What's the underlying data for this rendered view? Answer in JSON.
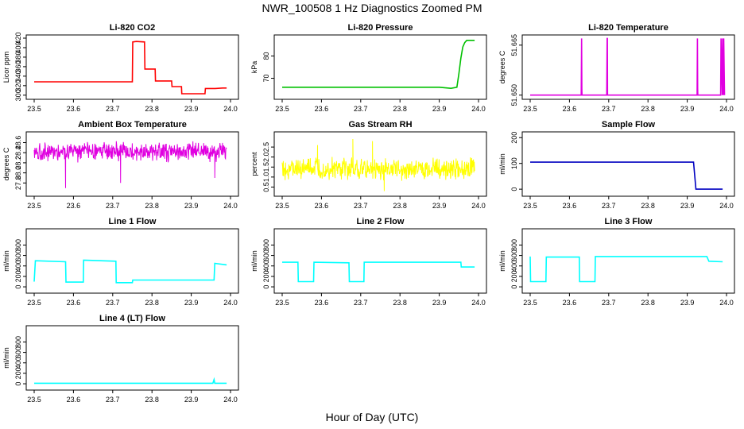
{
  "title": "NWR_100508  1 Hz Diagnostics Zoomed PM",
  "xlabel": "Hour of Day (UTC)",
  "chart_data": [
    {
      "type": "line",
      "title": "Li-820 CO2",
      "ylabel": "Licor ppm",
      "color": "#ff0000",
      "xlim": [
        23.5,
        24.0
      ],
      "ylim": [
        298,
        420
      ],
      "xticks": [
        "23.5",
        "23.6",
        "23.7",
        "23.8",
        "23.9",
        "24.0"
      ],
      "yticks": [
        "300",
        "320",
        "340",
        "360",
        "380",
        "400",
        "420"
      ],
      "x": [
        23.5,
        23.75,
        23.751,
        23.76,
        23.781,
        23.782,
        23.8,
        23.808,
        23.809,
        23.83,
        23.85,
        23.851,
        23.875,
        23.876,
        23.9,
        23.935,
        23.936,
        23.96,
        23.961,
        23.98,
        23.99
      ],
      "y": [
        328,
        328,
        412,
        413,
        412,
        355,
        355,
        355,
        330,
        330,
        330,
        318,
        318,
        303,
        303,
        303,
        314,
        314,
        314,
        315,
        315
      ]
    },
    {
      "type": "line",
      "title": "Li-820 Pressure",
      "ylabel": "kPa",
      "color": "#00c000",
      "xlim": [
        23.5,
        24.0
      ],
      "ylim": [
        62,
        88
      ],
      "xticks": [
        "23.5",
        "23.6",
        "23.7",
        "23.8",
        "23.9",
        "24.0"
      ],
      "yticks": [
        "70",
        "80"
      ],
      "x": [
        23.5,
        23.7,
        23.9,
        23.93,
        23.945,
        23.95,
        23.955,
        23.96,
        23.965,
        23.97,
        23.99
      ],
      "y": [
        66,
        66,
        66,
        65.5,
        66,
        72,
        79,
        84,
        86,
        87,
        87
      ]
    },
    {
      "type": "line",
      "title": "Li-820 Temperature",
      "ylabel": "degrees C",
      "color": "#e000e0",
      "xlim": [
        23.5,
        24.0
      ],
      "ylim": [
        51.6497,
        51.6671
      ],
      "xticks": [
        "23.5",
        "23.6",
        "23.7",
        "23.8",
        "23.9",
        "24.0"
      ],
      "yticks": [
        "51.650",
        "51.665"
      ],
      "x": [
        23.5,
        23.63,
        23.631,
        23.6315,
        23.632,
        23.695,
        23.696,
        23.6965,
        23.697,
        23.925,
        23.926,
        23.9265,
        23.927,
        23.985,
        23.986,
        23.988,
        23.989,
        23.99,
        23.991,
        23.992,
        23.993,
        23.995
      ],
      "y": [
        51.65,
        51.65,
        51.667,
        51.652,
        51.65,
        51.65,
        51.667,
        51.667,
        51.65,
        51.65,
        51.667,
        51.652,
        51.65,
        51.65,
        51.667,
        51.656,
        51.65,
        51.667,
        51.654,
        51.65,
        51.667,
        51.65
      ]
    },
    {
      "type": "line",
      "title": "Ambient Box Temperature",
      "ylabel": "degrees C",
      "color": "#e000e0",
      "xlim": [
        23.5,
        24.0
      ],
      "ylim": [
        27.6,
        28.75
      ],
      "xticks": [
        "23.5",
        "23.6",
        "23.7",
        "23.8",
        "23.9",
        "24.0"
      ],
      "yticks": [
        "27.8",
        "28.0",
        "28.2",
        "28.4",
        "28.6"
      ],
      "noise": {
        "center": 28.42,
        "amplitude": 0.22,
        "spikes": [
          [
            23.58,
            27.7
          ],
          [
            23.72,
            27.8
          ],
          [
            23.96,
            27.9
          ]
        ]
      }
    },
    {
      "type": "line",
      "title": "Gas Stream RH",
      "ylabel": "percent",
      "color": "#ffff00",
      "xlim": [
        23.5,
        24.0
      ],
      "ylim": [
        0.2,
        3.1
      ],
      "xticks": [
        "23.5",
        "23.6",
        "23.7",
        "23.8",
        "23.9",
        "24.0"
      ],
      "yticks": [
        "0.5",
        "1.0",
        "1.5",
        "2.0",
        "2.5"
      ],
      "noise": {
        "center": 1.4,
        "amplitude": 0.65,
        "spikes": [
          [
            23.68,
            2.9
          ],
          [
            23.73,
            2.8
          ],
          [
            23.59,
            2.6
          ],
          [
            23.76,
            0.3
          ]
        ]
      }
    },
    {
      "type": "line",
      "title": "Sample Flow",
      "ylabel": "ml/min",
      "color": "#0000c0",
      "xlim": [
        23.5,
        24.0
      ],
      "ylim": [
        -15,
        210
      ],
      "xticks": [
        "23.5",
        "23.6",
        "23.7",
        "23.8",
        "23.9",
        "24.0"
      ],
      "yticks": [
        "0",
        "100",
        "200"
      ],
      "x": [
        23.5,
        23.7,
        23.916,
        23.922,
        23.93,
        23.99
      ],
      "y": [
        105,
        105,
        105,
        0,
        0,
        0
      ]
    },
    {
      "type": "line",
      "title": "Line 1 Flow",
      "ylabel": "ml/min",
      "color": "#00ffff",
      "xlim": [
        23.5,
        24.0
      ],
      "ylim": [
        -60,
        1050
      ],
      "xticks": [
        "23.5",
        "23.6",
        "23.7",
        "23.8",
        "23.9",
        "24.0"
      ],
      "yticks": [
        "0",
        "200",
        "400",
        "600",
        "800"
      ],
      "x": [
        23.5,
        23.503,
        23.58,
        23.581,
        23.625,
        23.626,
        23.708,
        23.709,
        23.75,
        23.751,
        23.958,
        23.96,
        23.99
      ],
      "y": [
        100,
        500,
        480,
        90,
        90,
        510,
        490,
        80,
        80,
        130,
        130,
        450,
        420
      ]
    },
    {
      "type": "line",
      "title": "Line 2 Flow",
      "ylabel": "ml/min",
      "color": "#00ffff",
      "xlim": [
        23.5,
        24.0
      ],
      "ylim": [
        -60,
        1050
      ],
      "xticks": [
        "23.5",
        "23.6",
        "23.7",
        "23.8",
        "23.9",
        "24.0"
      ],
      "yticks": [
        "0",
        "200",
        "400",
        "600",
        "800"
      ],
      "x": [
        23.5,
        23.54,
        23.541,
        23.58,
        23.581,
        23.67,
        23.671,
        23.708,
        23.709,
        23.955,
        23.956,
        23.99
      ],
      "y": [
        470,
        470,
        100,
        100,
        470,
        460,
        100,
        100,
        470,
        470,
        380,
        380
      ]
    },
    {
      "type": "line",
      "title": "Line 3 Flow",
      "ylabel": "ml/min",
      "color": "#00ffff",
      "xlim": [
        23.5,
        24.0
      ],
      "ylim": [
        -60,
        1050
      ],
      "xticks": [
        "23.5",
        "23.6",
        "23.7",
        "23.8",
        "23.9",
        "24.0"
      ],
      "yticks": [
        "0",
        "200",
        "400",
        "600",
        "800"
      ],
      "x": [
        23.5,
        23.501,
        23.54,
        23.541,
        23.625,
        23.626,
        23.665,
        23.666,
        23.95,
        23.955,
        23.99
      ],
      "y": [
        580,
        100,
        100,
        570,
        570,
        100,
        100,
        580,
        580,
        490,
        480
      ]
    },
    {
      "type": "line",
      "title": "Line 4 (LT) Flow",
      "ylabel": "ml/min",
      "color": "#00ffff",
      "xlim": [
        23.5,
        24.0
      ],
      "ylim": [
        -60,
        1050
      ],
      "xticks": [
        "23.5",
        "23.6",
        "23.7",
        "23.8",
        "23.9",
        "24.0"
      ],
      "yticks": [
        "0",
        "200",
        "400",
        "600",
        "800"
      ],
      "x": [
        23.5,
        23.9,
        23.955,
        23.958,
        23.96,
        23.99
      ],
      "y": [
        10,
        10,
        10,
        80,
        10,
        10
      ]
    }
  ]
}
